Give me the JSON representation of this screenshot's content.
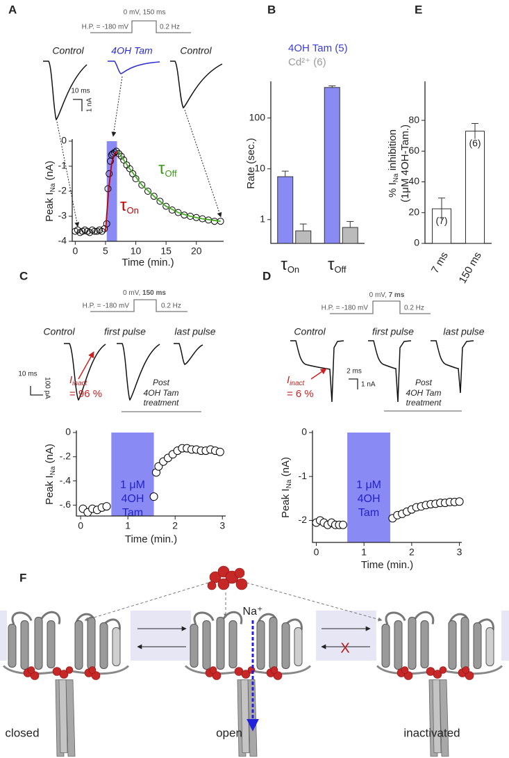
{
  "panel_labels": [
    "A",
    "B",
    "C",
    "D",
    "E",
    "F"
  ],
  "chart_data": [
    {
      "type": "scatter",
      "x_label": "Time (min.)",
      "y_label": {
        "main": "Peak I",
        "sub": "Na",
        "unit": " (nA)"
      },
      "xlim": [
        -0.5,
        24.5
      ],
      "ylim": [
        -4,
        0
      ],
      "xticks": [
        0,
        5,
        10,
        15,
        20
      ],
      "yticks": [
        0,
        -1,
        -2,
        -3,
        -4
      ],
      "shade": [
        5.2,
        6.9
      ],
      "shade_color": "#8a8af5",
      "series": [
        {
          "mode": "markers",
          "color": "#000000",
          "x": [
            0,
            0.4,
            0.8,
            1.2,
            1.6,
            2,
            2.4,
            2.8,
            3.2,
            3.6,
            4,
            4.4,
            4.8,
            5.2,
            5.4,
            5.6,
            5.8,
            6,
            6.2,
            6.5,
            6.8,
            7.2,
            7.6,
            8,
            8.5,
            9,
            9.5,
            10,
            11,
            12,
            13,
            14,
            15,
            16,
            17,
            18,
            19,
            20,
            21,
            22,
            23,
            24
          ],
          "values": [
            -3.6,
            -3.55,
            -3.65,
            -3.6,
            -3.55,
            -3.6,
            -3.65,
            -3.55,
            -3.6,
            -3.6,
            -3.55,
            -3.6,
            -3.5,
            -3.3,
            -1.9,
            -1.3,
            -0.8,
            -0.55,
            -0.5,
            -0.45,
            -0.4,
            -0.5,
            -0.6,
            -0.75,
            -0.95,
            -1.1,
            -1.3,
            -1.5,
            -1.75,
            -2,
            -2.2,
            -2.4,
            -2.6,
            -2.75,
            -2.85,
            -2.95,
            -3.0,
            -3.05,
            -3.1,
            -3.15,
            -3.2,
            -3.2
          ]
        },
        {
          "mode": "line",
          "color": "#c00000",
          "x": [
            5,
            5.5,
            6,
            6.5,
            7
          ],
          "values": [
            -3.6,
            -2.0,
            -0.9,
            -0.5,
            -0.4
          ]
        },
        {
          "mode": "line",
          "color": "#44aa22",
          "x": [
            7,
            9,
            11,
            13,
            15,
            17,
            19,
            21,
            24
          ],
          "values": [
            -0.4,
            -1.1,
            -1.75,
            -2.2,
            -2.6,
            -2.85,
            -3.0,
            -3.1,
            -3.2
          ]
        }
      ]
    },
    {
      "type": "bar",
      "log_y": true,
      "y_label": "Rate (sec.)",
      "category_symbol": "τ",
      "categories": [
        "On",
        "Off"
      ],
      "ylim": [
        0.34,
        480
      ],
      "yticks": [
        1,
        10,
        100
      ],
      "series": [
        {
          "name": "4OH Tam (5)",
          "color": "#8a8af5",
          "label_color": "#3b3bd6",
          "values": [
            7,
            400
          ],
          "errors": [
            2,
            30
          ]
        },
        {
          "name": "Cd²⁺ (6)",
          "color": "#bbbbbb",
          "label_color": "#999999",
          "values": [
            0.6,
            0.7
          ],
          "errors": [
            0.22,
            0.22
          ]
        }
      ]
    },
    {
      "type": "scatter",
      "x_label": "Time (min.)",
      "y_label": {
        "main": "Peak I",
        "sub": "Na",
        "unit": " (nA)"
      },
      "xlim": [
        -0.09,
        3.07
      ],
      "ylim": [
        -0.69,
        0
      ],
      "xticks": [
        0,
        1,
        2,
        3
      ],
      "yticks": [
        0,
        {
          "value": -0.2,
          "label": "-.2"
        },
        {
          "value": -0.4,
          "label": "-.4"
        },
        {
          "value": -0.6,
          "label": "-.6"
        }
      ],
      "shade": [
        0.65,
        1.55
      ],
      "shade_color": "#8a8af5",
      "shade_label": [
        "1 μM",
        "4OH",
        "Tam"
      ],
      "series": [
        {
          "mode": "markers",
          "color": "#000000",
          "x": [
            0.05,
            0.15,
            0.25,
            0.35,
            0.45,
            0.55,
            1.55,
            1.6,
            1.65,
            1.75,
            1.85,
            1.95,
            2.05,
            2.15,
            2.25,
            2.35,
            2.45,
            2.55,
            2.65,
            2.75,
            2.85,
            2.95
          ],
          "values": [
            -0.63,
            -0.66,
            -0.63,
            -0.64,
            -0.62,
            -0.61,
            -0.53,
            -0.33,
            -0.28,
            -0.24,
            -0.21,
            -0.18,
            -0.15,
            -0.13,
            -0.13,
            -0.14,
            -0.14,
            -0.15,
            -0.15,
            -0.14,
            -0.15,
            -0.16
          ]
        }
      ]
    },
    {
      "type": "scatter",
      "x_label": "Time (min.)",
      "y_label": {
        "main": "Peak I",
        "sub": "Na",
        "unit": " (nA)"
      },
      "xlim": [
        -0.08,
        3.05
      ],
      "ylim": [
        -2.5,
        0
      ],
      "xticks": [
        0,
        1,
        2,
        3
      ],
      "yticks": [
        0,
        -1,
        -2
      ],
      "shade": [
        0.65,
        1.55
      ],
      "shade_color": "#8a8af5",
      "shade_label": [
        "1 μM",
        "4OH",
        "Tam"
      ],
      "series": [
        {
          "mode": "markers",
          "color": "#000000",
          "x": [
            0,
            0.08,
            0.16,
            0.24,
            0.32,
            0.4,
            0.48,
            0.56,
            1.6,
            1.7,
            1.8,
            1.9,
            2.0,
            2.1,
            2.2,
            2.3,
            2.4,
            2.5,
            2.6,
            2.7,
            2.8,
            2.9,
            3.0
          ],
          "values": [
            -2.05,
            -2.0,
            -2.05,
            -2.1,
            -2.05,
            -2.1,
            -2.1,
            -2.1,
            -1.95,
            -1.88,
            -1.85,
            -1.8,
            -1.75,
            -1.7,
            -1.68,
            -1.65,
            -1.63,
            -1.62,
            -1.6,
            -1.6,
            -1.58,
            -1.58,
            -1.57
          ]
        }
      ]
    },
    {
      "type": "bar",
      "y_label": {
        "main": "% I",
        "sub": "Na",
        "unit": " inhibition",
        "line2": "(1μM 4OH-Tam.)"
      },
      "categories": [
        "7 ms",
        "150 ms"
      ],
      "values": [
        22.5,
        73
      ],
      "errors": [
        7,
        5
      ],
      "n_labels": [
        "(7)",
        "(6)"
      ],
      "color": "#ffffff",
      "ylim": [
        0,
        104
      ],
      "yticks": [
        0,
        20,
        40,
        60,
        80
      ]
    }
  ],
  "panel_a": {
    "protocol": {
      "step": "0 mV, 150 ms",
      "hp": "H.P. = -180 mV",
      "freq": "0.2 Hz"
    },
    "traces": [
      "Control",
      "4OH Tam",
      "Control"
    ],
    "scale_x": "10 ms",
    "scale_y": "1 nA",
    "tau": "τ",
    "tau_off": "Off",
    "tau_on": "On"
  },
  "panel_c": {
    "protocol": {
      "step": "0 mV, ",
      "step_bold": "150 ms",
      "hp": "H.P. = -180 mV",
      "freq": "0.2 Hz"
    },
    "traces": [
      "Control",
      "first pulse",
      "last pulse"
    ],
    "inact": "I",
    "inact_sub": "inact",
    "inact_value": "= 96 %",
    "scale_x": "10 ms",
    "scale_y": "100 pA",
    "treatment": [
      "Post",
      "4OH Tam",
      "treatment"
    ]
  },
  "panel_d": {
    "protocol": {
      "step": "0 mV, ",
      "step_bold": "7 ms",
      "hp": "H.P. = -180 mV",
      "freq": "0.2 Hz"
    },
    "traces": [
      "Control",
      "first pulse",
      "last pulse"
    ],
    "inact": "I",
    "inact_sub": "inact",
    "inact_value": "= 6 %",
    "scale_x": "2 ms",
    "scale_y": "1 nA",
    "treatment": [
      "Post",
      "4OH Tam",
      "treatment"
    ]
  },
  "panel_f": {
    "ion": "Na⁺",
    "states": [
      "closed",
      "open",
      "inactivated"
    ],
    "block": "X"
  }
}
